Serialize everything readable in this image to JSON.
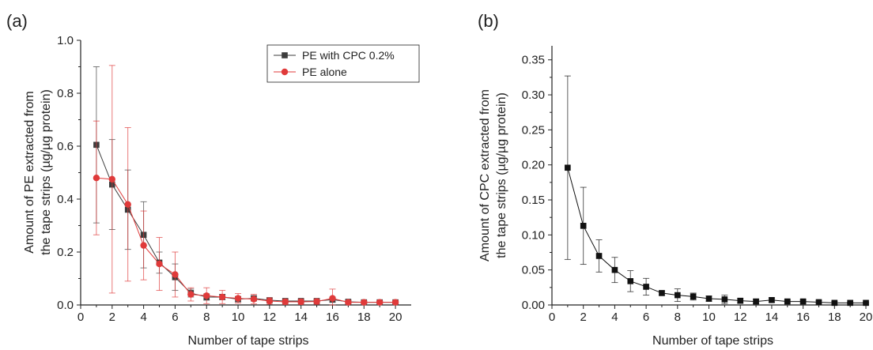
{
  "chart_data": [
    {
      "type": "line",
      "panel_label": "(a)",
      "title": "",
      "xlabel": "Number of tape strips",
      "ylabel": "Amount of PE extracted from the tape strips (µg/µg protein)",
      "ylabel_lines": [
        "Amount of PE extracted from",
        "the tape strips (µg/µg protein)"
      ],
      "xlim": [
        0,
        21
      ],
      "ylim": [
        0,
        1.0
      ],
      "xticks": [
        0,
        2,
        4,
        6,
        8,
        10,
        12,
        14,
        16,
        18,
        20
      ],
      "yticks": [
        0.0,
        0.2,
        0.4,
        0.6,
        0.8,
        1.0
      ],
      "ytick_labels": [
        "0.0",
        "0.2",
        "0.4",
        "0.6",
        "0.8",
        "1.0"
      ],
      "legend_position": "top-right",
      "grid": false,
      "series": [
        {
          "name": "PE with CPC 0.2%",
          "marker": "square",
          "color": "#3d3d3d",
          "x": [
            1,
            2,
            3,
            4,
            5,
            6,
            7,
            8,
            9,
            10,
            11,
            12,
            13,
            14,
            15,
            16,
            17,
            18,
            19,
            20
          ],
          "values": [
            0.605,
            0.455,
            0.36,
            0.265,
            0.16,
            0.105,
            0.045,
            0.03,
            0.03,
            0.022,
            0.025,
            0.018,
            0.015,
            0.015,
            0.015,
            0.02,
            0.012,
            0.01,
            0.01,
            0.01
          ],
          "error": [
            0.295,
            0.17,
            0.15,
            0.125,
            0.04,
            0.05,
            0.015,
            0.012,
            0.01,
            0.01,
            0.01,
            0.008,
            0.006,
            0.006,
            0.006,
            0.01,
            0.006,
            0.005,
            0.005,
            0.005
          ]
        },
        {
          "name": "PE alone",
          "marker": "circle",
          "color": "#e03a3a",
          "x": [
            1,
            2,
            3,
            4,
            5,
            6,
            7,
            8,
            9,
            10,
            11,
            12,
            13,
            14,
            15,
            16,
            17,
            18,
            19,
            20
          ],
          "values": [
            0.48,
            0.475,
            0.38,
            0.225,
            0.155,
            0.115,
            0.04,
            0.035,
            0.03,
            0.025,
            0.022,
            0.015,
            0.012,
            0.012,
            0.013,
            0.025,
            0.01,
            0.01,
            0.01,
            0.01
          ],
          "error": [
            0.215,
            0.43,
            0.29,
            0.13,
            0.1,
            0.085,
            0.025,
            0.03,
            0.025,
            0.018,
            0.018,
            0.012,
            0.01,
            0.01,
            0.01,
            0.035,
            0.006,
            0.005,
            0.005,
            0.005
          ]
        }
      ]
    },
    {
      "type": "line",
      "panel_label": "(b)",
      "title": "",
      "xlabel": "Number of tape strips",
      "ylabel": "Amount of CPC extracted from the tape strips (µg/µg protein)",
      "ylabel_lines": [
        "Amount of CPC extracted from",
        "the tape strips (µg/µg protein)"
      ],
      "xlim": [
        0,
        20.2
      ],
      "ylim": [
        0,
        0.37
      ],
      "xticks": [
        0,
        2,
        4,
        6,
        8,
        10,
        12,
        14,
        16,
        18,
        20
      ],
      "yticks": [
        0.0,
        0.05,
        0.1,
        0.15,
        0.2,
        0.25,
        0.3,
        0.35
      ],
      "ytick_labels": [
        "0.00",
        "0.05",
        "0.10",
        "0.15",
        "0.20",
        "0.25",
        "0.30",
        "0.35"
      ],
      "grid": false,
      "series": [
        {
          "marker": "square",
          "color": "#111111",
          "x": [
            1,
            2,
            3,
            4,
            5,
            6,
            7,
            8,
            9,
            10,
            11,
            12,
            13,
            14,
            15,
            16,
            17,
            18,
            19,
            20
          ],
          "values": [
            0.196,
            0.113,
            0.07,
            0.05,
            0.034,
            0.026,
            0.017,
            0.014,
            0.012,
            0.009,
            0.008,
            0.006,
            0.005,
            0.007,
            0.005,
            0.005,
            0.004,
            0.003,
            0.003,
            0.003
          ],
          "error": [
            0.131,
            0.055,
            0.023,
            0.018,
            0.015,
            0.012,
            0.003,
            0.009,
            0.005,
            0.004,
            0.006,
            0.003,
            0.003,
            0.003,
            0.002,
            0.002,
            0.002,
            0.002,
            0.001,
            0.001
          ]
        }
      ]
    }
  ]
}
